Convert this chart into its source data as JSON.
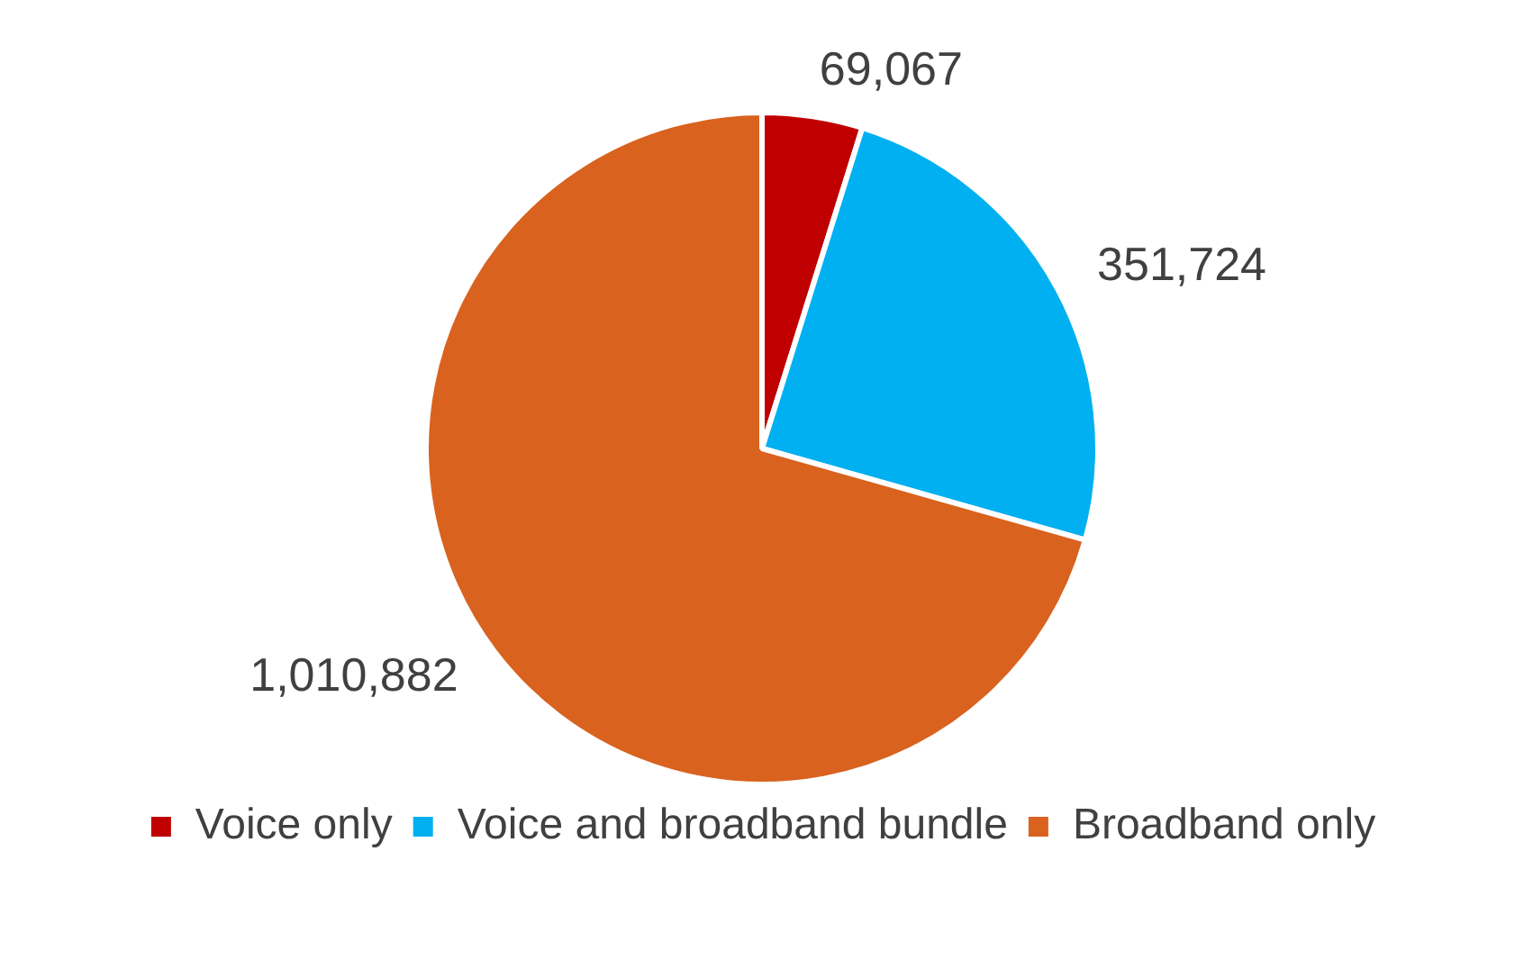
{
  "chart_data": {
    "type": "pie",
    "categories": [
      "Voice only",
      "Voice and broadband bundle",
      "Broadband only"
    ],
    "values": [
      69067,
      351724,
      1010882
    ],
    "colors": [
      "#c00000",
      "#00b0f0",
      "#d9621f"
    ],
    "value_labels": [
      "69,067",
      "351,724",
      "1,010,882"
    ],
    "legend": "bottom"
  }
}
